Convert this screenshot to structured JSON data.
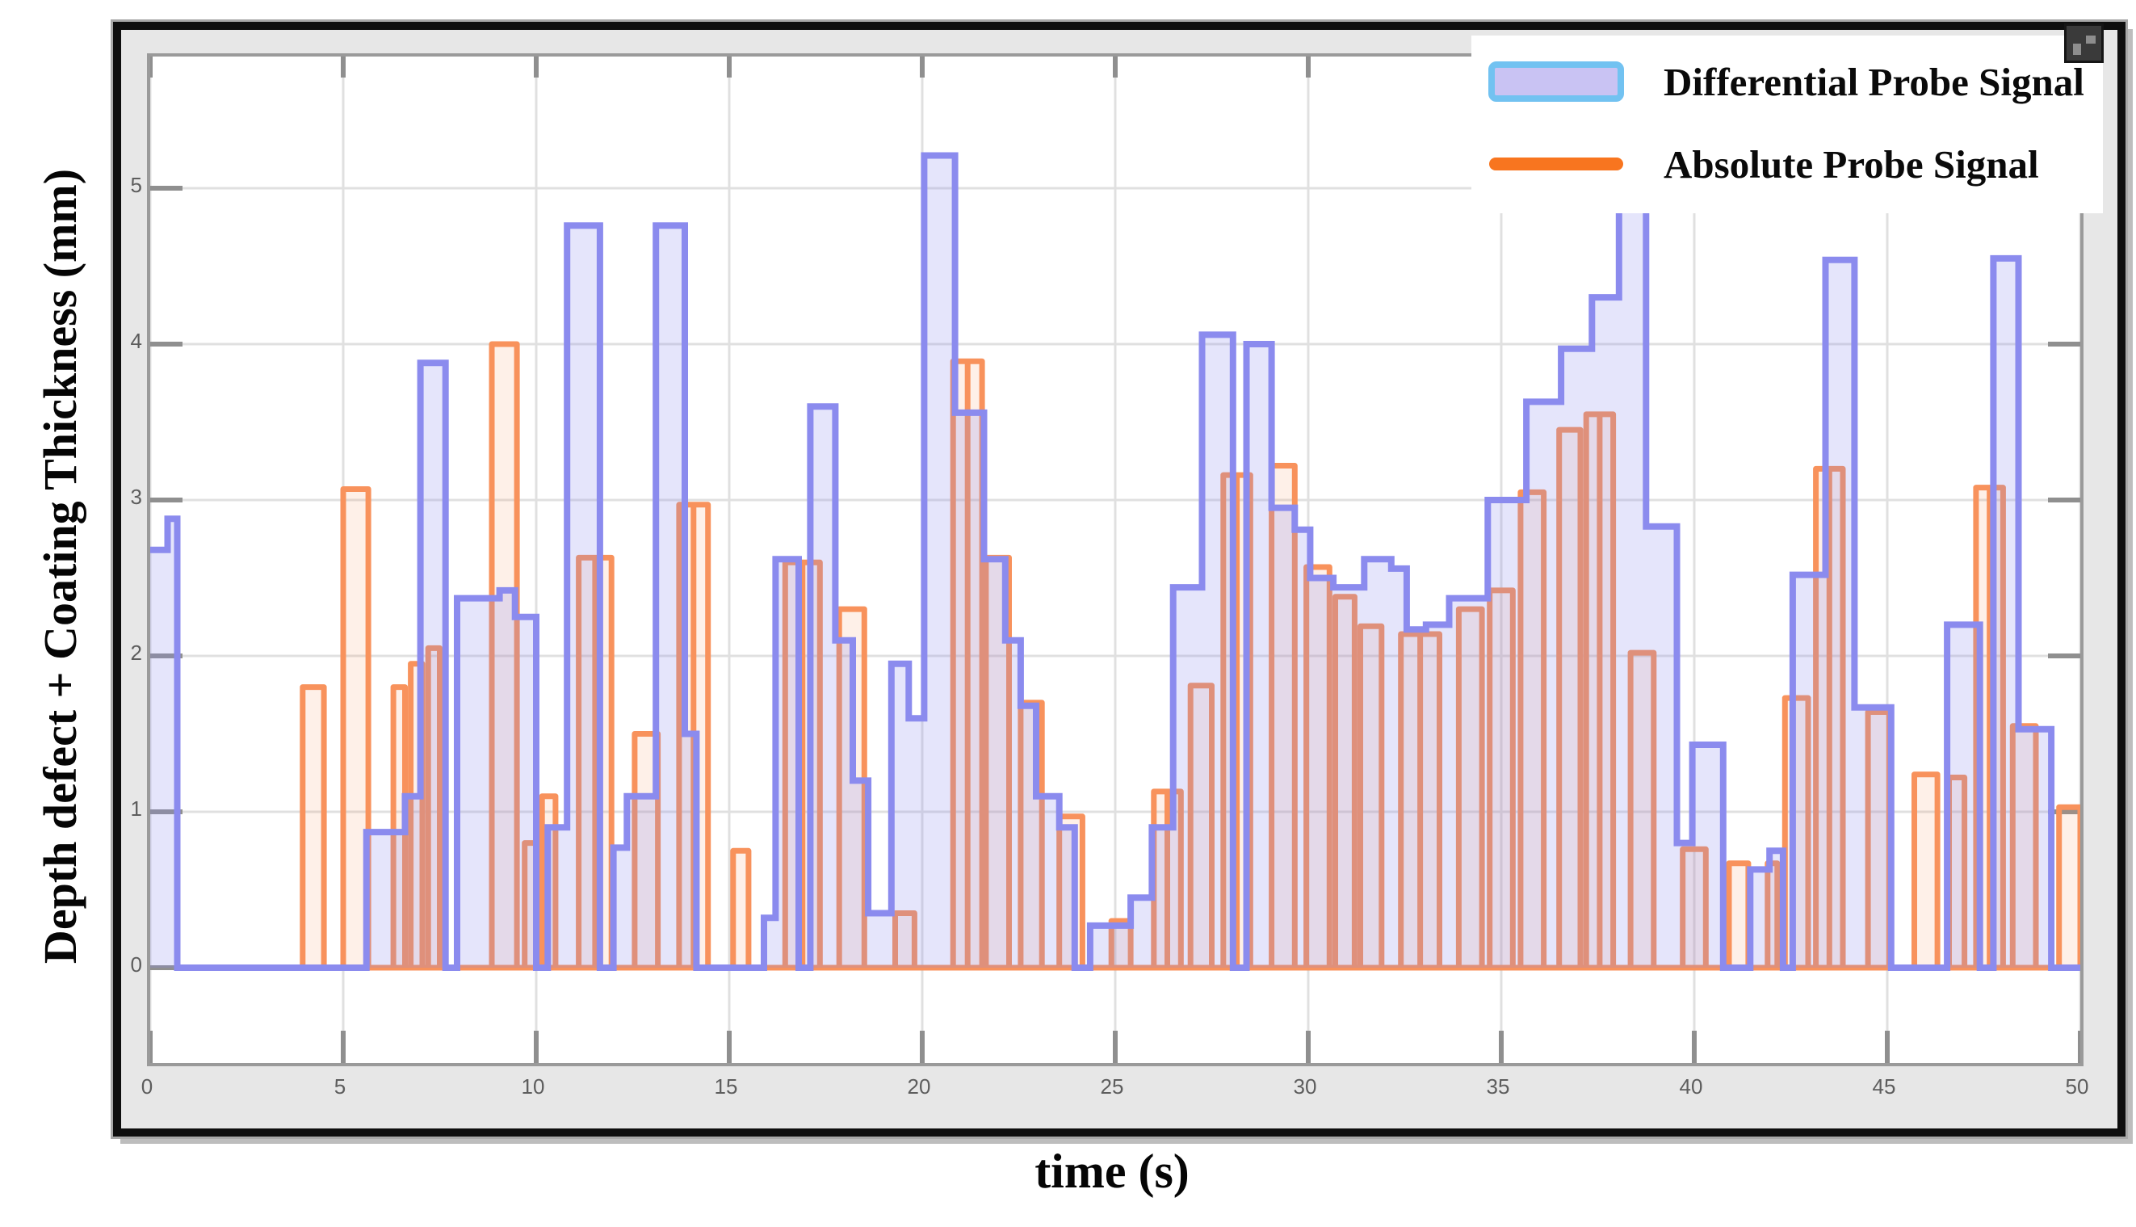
{
  "figure": {
    "x_axis_title": "time (s)",
    "y_axis_title": "Depth defect + Coating Thickness (mm)"
  },
  "legend": {
    "items": [
      {
        "label": "Differential Probe Signal",
        "series": "differential",
        "swatch_fill": "#c9c3f3",
        "swatch_border": "#72c2f1"
      },
      {
        "label": "Absolute Probe Signal",
        "series": "absolute",
        "swatch_fill": "#f8751f",
        "swatch_border": "#f8751f"
      }
    ]
  },
  "corner_icon": "window-widget-icon",
  "colors": {
    "differential_stroke": "#8b8bee",
    "differential_fill": "rgba(136,136,238,0.22)",
    "absolute_stroke": "#f8925c",
    "absolute_cap": "#f8813c",
    "absolute_fill": "rgba(248,146,92,0.14)",
    "gridline": "#e0e0e0",
    "tick_stub": "#8f8f8f",
    "plot_border": "#9a9a9a",
    "frame_border": "#0e0e0e",
    "margin_bg": "#e7e7e7",
    "plot_bg": "#ffffff"
  },
  "chart_data": {
    "type": "line",
    "subtype": "step-signals",
    "title": "",
    "xlabel": "time (s)",
    "ylabel": "Depth defect + Coating Thickness (mm)",
    "xlim": [
      0,
      50
    ],
    "ylim": [
      -0.61,
      5.84
    ],
    "x_ticks": [
      0,
      5,
      10,
      15,
      20,
      25,
      30,
      35,
      40,
      45,
      50
    ],
    "y_ticks": [
      0,
      1,
      2,
      3,
      4,
      5
    ],
    "grid": true,
    "legend_position": "top-right",
    "series": [
      {
        "name": "Differential Probe Signal",
        "style": "step",
        "points": [
          [
            0,
            2.68
          ],
          [
            0.45,
            2.88
          ],
          [
            0.7,
            0
          ],
          [
            5.6,
            0.87
          ],
          [
            6.6,
            1.1
          ],
          [
            7.0,
            3.88
          ],
          [
            7.65,
            0
          ],
          [
            7.95,
            2.37
          ],
          [
            9.05,
            2.42
          ],
          [
            9.45,
            2.25
          ],
          [
            10.0,
            0
          ],
          [
            10.3,
            0.9
          ],
          [
            10.8,
            4.76
          ],
          [
            11.65,
            0
          ],
          [
            12.0,
            0.77
          ],
          [
            12.35,
            1.1
          ],
          [
            13.1,
            4.76
          ],
          [
            13.85,
            1.5
          ],
          [
            14.15,
            0
          ],
          [
            15.9,
            0.32
          ],
          [
            16.2,
            2.62
          ],
          [
            16.8,
            0
          ],
          [
            17.1,
            3.6
          ],
          [
            17.75,
            2.1
          ],
          [
            18.2,
            1.2
          ],
          [
            18.6,
            0.35
          ],
          [
            19.2,
            1.95
          ],
          [
            19.65,
            1.6
          ],
          [
            20.05,
            5.21
          ],
          [
            20.85,
            3.56
          ],
          [
            21.6,
            2.62
          ],
          [
            22.15,
            2.1
          ],
          [
            22.55,
            1.68
          ],
          [
            22.95,
            1.1
          ],
          [
            23.55,
            0.9
          ],
          [
            23.95,
            0
          ],
          [
            24.35,
            0.27
          ],
          [
            25.4,
            0.45
          ],
          [
            25.95,
            0.9
          ],
          [
            26.5,
            2.44
          ],
          [
            27.25,
            4.06
          ],
          [
            28.05,
            0
          ],
          [
            28.4,
            4.0
          ],
          [
            29.05,
            2.95
          ],
          [
            29.65,
            2.81
          ],
          [
            30.05,
            2.5
          ],
          [
            30.65,
            2.44
          ],
          [
            31.45,
            2.62
          ],
          [
            32.15,
            2.56
          ],
          [
            32.55,
            2.17
          ],
          [
            33.05,
            2.2
          ],
          [
            33.65,
            2.37
          ],
          [
            34.65,
            3.0
          ],
          [
            35.65,
            3.63
          ],
          [
            36.55,
            3.97
          ],
          [
            37.35,
            4.3
          ],
          [
            38.05,
            4.97
          ],
          [
            38.75,
            2.83
          ],
          [
            39.55,
            0.8
          ],
          [
            39.95,
            1.43
          ],
          [
            40.75,
            0
          ],
          [
            41.45,
            0.63
          ],
          [
            41.95,
            0.75
          ],
          [
            42.3,
            0
          ],
          [
            42.55,
            2.52
          ],
          [
            43.4,
            4.54
          ],
          [
            44.15,
            1.67
          ],
          [
            45.1,
            0
          ],
          [
            46.55,
            2.2
          ],
          [
            47.4,
            0
          ],
          [
            47.75,
            4.55
          ],
          [
            48.4,
            1.53
          ],
          [
            49.25,
            0
          ],
          [
            50,
            0
          ]
        ]
      },
      {
        "name": "Absolute Probe Signal",
        "style": "pulses",
        "baseline_start": 3.95,
        "baseline_end": 50,
        "pulses": [
          [
            3.95,
            4.5,
            1.8
          ],
          [
            5.0,
            5.65,
            3.07
          ],
          [
            6.3,
            6.6,
            1.8
          ],
          [
            6.75,
            7.05,
            1.95
          ],
          [
            7.2,
            7.5,
            2.05
          ],
          [
            8.85,
            9.5,
            4.0
          ],
          [
            9.7,
            10.0,
            0.8
          ],
          [
            10.15,
            10.5,
            1.1
          ],
          [
            11.1,
            11.95,
            2.63
          ],
          [
            12.55,
            13.15,
            1.5
          ],
          [
            13.7,
            14.45,
            2.97
          ],
          [
            15.1,
            15.5,
            0.75
          ],
          [
            16.45,
            17.35,
            2.6
          ],
          [
            17.85,
            18.5,
            2.3
          ],
          [
            19.3,
            19.8,
            0.35
          ],
          [
            20.8,
            21.55,
            3.89
          ],
          [
            21.65,
            22.25,
            2.63
          ],
          [
            22.55,
            23.1,
            1.7
          ],
          [
            23.55,
            24.15,
            0.97
          ],
          [
            24.9,
            25.4,
            0.3
          ],
          [
            26.0,
            26.7,
            1.13
          ],
          [
            26.95,
            27.5,
            1.81
          ],
          [
            27.8,
            28.5,
            3.16
          ],
          [
            29.05,
            29.65,
            3.22
          ],
          [
            29.95,
            30.55,
            2.57
          ],
          [
            30.7,
            31.2,
            2.38
          ],
          [
            31.35,
            31.9,
            2.19
          ],
          [
            32.4,
            33.4,
            2.14
          ],
          [
            33.9,
            34.5,
            2.3
          ],
          [
            34.7,
            35.3,
            2.42
          ],
          [
            35.5,
            36.1,
            3.05
          ],
          [
            36.5,
            37.05,
            3.45
          ],
          [
            37.2,
            37.9,
            3.55
          ],
          [
            38.35,
            38.95,
            2.02
          ],
          [
            39.7,
            40.3,
            0.76
          ],
          [
            40.9,
            41.4,
            0.67
          ],
          [
            41.9,
            42.15,
            0.67
          ],
          [
            42.35,
            42.95,
            1.73
          ],
          [
            43.15,
            43.85,
            3.2
          ],
          [
            44.5,
            45.05,
            1.64
          ],
          [
            45.7,
            46.3,
            1.24
          ],
          [
            46.6,
            47.0,
            1.22
          ],
          [
            47.3,
            48.0,
            3.08
          ],
          [
            48.25,
            48.85,
            1.55
          ],
          [
            49.45,
            50,
            1.03
          ]
        ]
      }
    ]
  }
}
